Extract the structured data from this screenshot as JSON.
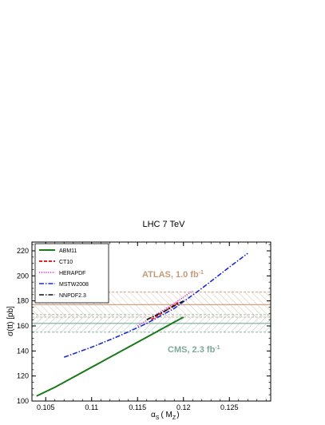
{
  "chart_data": {
    "type": "line",
    "title": "LHC 7 TeV",
    "xlabel_main": "α",
    "xlabel_sub": "S",
    "xlabel_paren": "( M",
    "xlabel_paren_sub": "Z",
    "xlabel_close": ")",
    "ylabel": "σ(tt) [pb]",
    "xlim": [
      0.1035,
      0.1295
    ],
    "ylim": [
      100,
      227
    ],
    "x_ticks": [
      0.105,
      0.11,
      0.115,
      0.12,
      0.125
    ],
    "x_tick_labels": [
      "0.105",
      "0.11",
      "0.115",
      "0.12",
      "0.125"
    ],
    "y_ticks": [
      100,
      120,
      140,
      160,
      180,
      200,
      220
    ],
    "y_tick_labels": [
      "100",
      "120",
      "140",
      "160",
      "180",
      "200",
      "220"
    ],
    "grid": false,
    "legend_position": "top-left",
    "series": [
      {
        "name": "ABM11",
        "color": "#1a7a1a",
        "style": "solid",
        "x": [
          0.104,
          0.106,
          0.108,
          0.11,
          0.112,
          0.114,
          0.116,
          0.118,
          0.12
        ],
        "y": [
          104,
          111,
          119,
          127,
          135,
          143,
          151,
          159,
          167
        ]
      },
      {
        "name": "CT10",
        "color": "#e8221a",
        "style": "dash",
        "x": [
          0.1165,
          0.118,
          0.1195
        ],
        "y": [
          165,
          172,
          179
        ]
      },
      {
        "name": "HERAPDF",
        "color": "#d02ad0",
        "style": "dot",
        "x": [
          0.115,
          0.117,
          0.119,
          0.121
        ],
        "y": [
          160,
          169,
          178,
          188
        ]
      },
      {
        "name": "MSTW2008",
        "color": "#1a2ad8",
        "style": "dashdot",
        "x": [
          0.107,
          0.11,
          0.113,
          0.116,
          0.119,
          0.122,
          0.125,
          0.127
        ],
        "y": [
          135,
          143,
          152,
          162,
          174,
          190,
          207,
          218
        ]
      },
      {
        "name": "NNPDF2.3",
        "color": "#111111",
        "style": "dashdot",
        "x": [
          0.116,
          0.118,
          0.12
        ],
        "y": [
          165,
          172,
          180
        ]
      }
    ],
    "bands": [
      {
        "label": "ATLAS, 1.0 fb",
        "label_sup": "-1",
        "central": 177,
        "low": 167,
        "high": 187,
        "color": "#c49a78"
      },
      {
        "label": "CMS, 2.3 fb",
        "label_sup": "-1",
        "central": 162,
        "low": 155,
        "high": 169,
        "color": "#7fa89a"
      }
    ]
  }
}
